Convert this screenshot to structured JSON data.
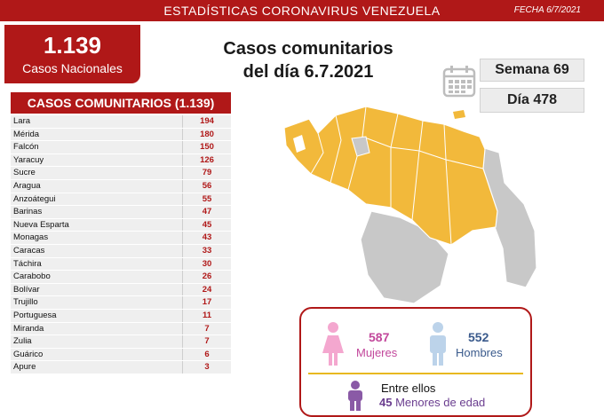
{
  "header": {
    "title": "ESTADÍSTICAS CORONAVIRUS VENEZUELA",
    "date": "FECHA 6/7/2021"
  },
  "national": {
    "count": "1.139",
    "label": "Casos Nacionales"
  },
  "main_heading": {
    "line1": "Casos comunitarios",
    "line2": "del día 6.7.2021"
  },
  "week": "Semana 69",
  "day": "Día 478",
  "table": {
    "title": "CASOS COMUNITARIOS (1.139)",
    "rows": [
      {
        "state": "Lara",
        "cases": "194"
      },
      {
        "state": "Mérida",
        "cases": "180"
      },
      {
        "state": "Falcón",
        "cases": "150"
      },
      {
        "state": "Yaracuy",
        "cases": "126"
      },
      {
        "state": "Sucre",
        "cases": "79"
      },
      {
        "state": "Aragua",
        "cases": "56"
      },
      {
        "state": "Anzoátegui",
        "cases": "55"
      },
      {
        "state": "Barinas",
        "cases": "47"
      },
      {
        "state": "Nueva Esparta",
        "cases": "45"
      },
      {
        "state": "Monagas",
        "cases": "43"
      },
      {
        "state": "Caracas",
        "cases": "33"
      },
      {
        "state": "Táchira",
        "cases": "30"
      },
      {
        "state": "Carabobo",
        "cases": "26"
      },
      {
        "state": "Bolívar",
        "cases": "24"
      },
      {
        "state": "Trujillo",
        "cases": "17"
      },
      {
        "state": "Portuguesa",
        "cases": "11"
      },
      {
        "state": "Miranda",
        "cases": "7"
      },
      {
        "state": "Zulia",
        "cases": "7"
      },
      {
        "state": "Guárico",
        "cases": "6"
      },
      {
        "state": "Apure",
        "cases": "3"
      }
    ]
  },
  "gender": {
    "women_count": "587",
    "women_label": "Mujeres",
    "men_count": "552",
    "men_label": "Hombres",
    "among_label": "Entre ellos",
    "minors_count": "45",
    "minors_label": "Menores de edad"
  },
  "colors": {
    "brand_red": "#b01818",
    "map_affected": "#f2b93b",
    "map_unaffected": "#c8c8c8",
    "women": "#c2479b",
    "men": "#3a5a8c",
    "minors": "#6a3d8f",
    "divider": "#e8b820"
  },
  "icons": {
    "calendar": "calendar-icon",
    "women": "woman-icon",
    "men": "man-icon",
    "minors": "child-icon"
  }
}
